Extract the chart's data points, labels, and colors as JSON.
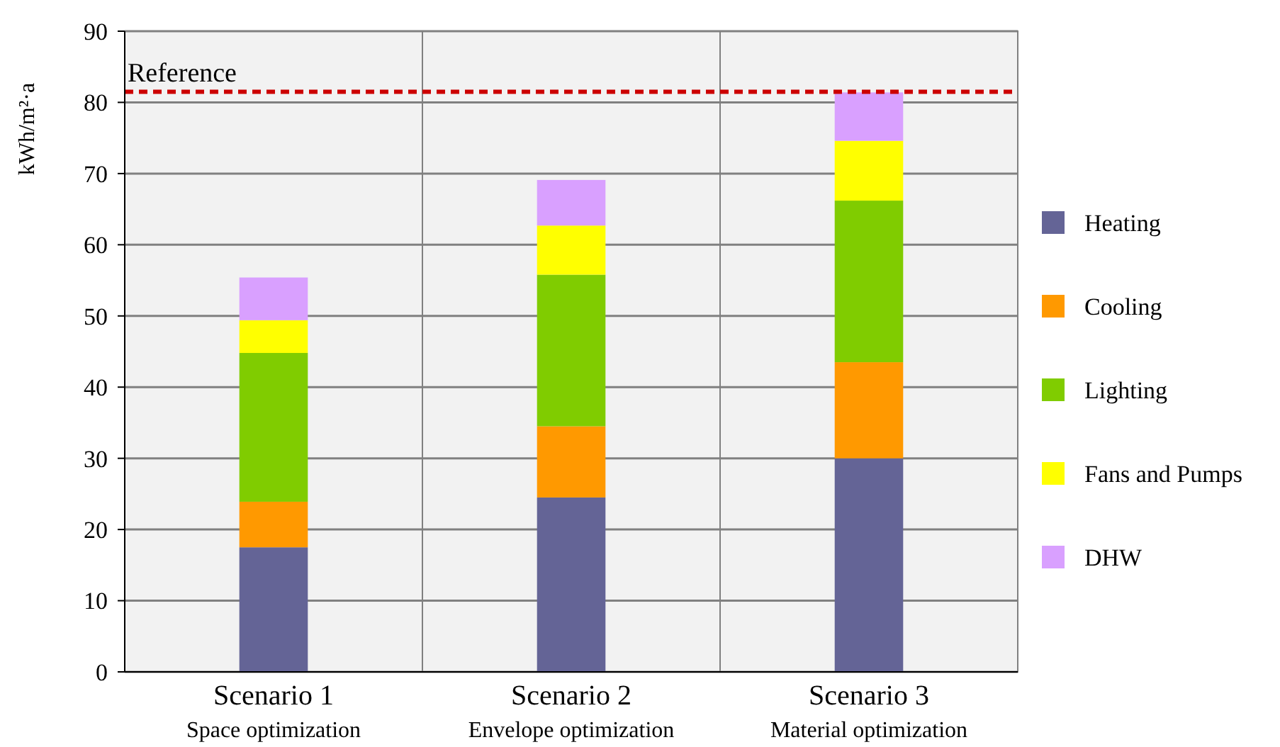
{
  "chart_data": {
    "type": "bar",
    "stacked": true,
    "ylabel": "kWh/m²·a",
    "categories": [
      "Scenario 1\nSpace optimization",
      "Scenario 2\nEnvelope optimization",
      "Scenario 3\nMaterial optimization"
    ],
    "series": [
      {
        "name": "Heating",
        "color": "#646496",
        "values": [
          17.5,
          24.5,
          30
        ]
      },
      {
        "name": "Cooling",
        "color": "#ff9900",
        "values": [
          6.4,
          10,
          13.5
        ]
      },
      {
        "name": "Lighting",
        "color": "#80cc00",
        "values": [
          20.9,
          21.3,
          22.7
        ]
      },
      {
        "name": "Fans and Pumps",
        "color": "#ffff00",
        "values": [
          4.6,
          6.9,
          8.4
        ]
      },
      {
        "name": "DHW",
        "color": "#d9a0ff",
        "values": [
          6,
          6.4,
          6.8
        ]
      }
    ],
    "ylim": [
      0,
      90
    ],
    "yticks": [
      0,
      10,
      20,
      30,
      40,
      50,
      60,
      70,
      80,
      90
    ],
    "grid": true,
    "legend": "right",
    "ref_lines": [
      {
        "axis": "y",
        "value": 81.5,
        "label": "Reference",
        "color": "#cc0000",
        "line_style": "dashed"
      }
    ]
  }
}
